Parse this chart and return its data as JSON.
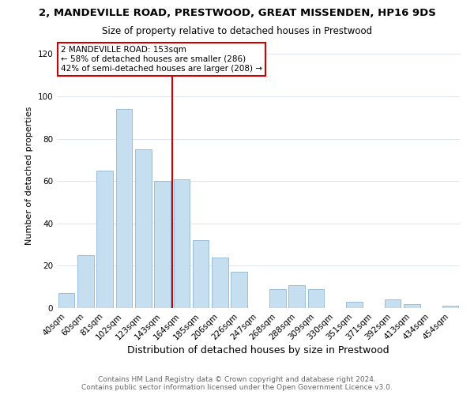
{
  "title": "2, MANDEVILLE ROAD, PRESTWOOD, GREAT MISSENDEN, HP16 9DS",
  "subtitle": "Size of property relative to detached houses in Prestwood",
  "xlabel": "Distribution of detached houses by size in Prestwood",
  "ylabel": "Number of detached properties",
  "bar_labels": [
    "40sqm",
    "60sqm",
    "81sqm",
    "102sqm",
    "123sqm",
    "143sqm",
    "164sqm",
    "185sqm",
    "206sqm",
    "226sqm",
    "247sqm",
    "268sqm",
    "288sqm",
    "309sqm",
    "330sqm",
    "351sqm",
    "371sqm",
    "392sqm",
    "413sqm",
    "434sqm",
    "454sqm"
  ],
  "bar_values": [
    7,
    25,
    65,
    94,
    75,
    60,
    61,
    32,
    24,
    17,
    0,
    9,
    11,
    9,
    0,
    3,
    0,
    4,
    2,
    0,
    1
  ],
  "bar_color": "#c5dff0",
  "bar_edge_color": "#9abdd6",
  "vline_x": 5.5,
  "vline_color": "#cc0000",
  "ylim": [
    0,
    125
  ],
  "yticks": [
    0,
    20,
    40,
    60,
    80,
    100,
    120
  ],
  "annotation_line1": "2 MANDEVILLE ROAD: 153sqm",
  "annotation_line2": "← 58% of detached houses are smaller (286)",
  "annotation_line3": "42% of semi-detached houses are larger (208) →",
  "annotation_box_color": "#cc0000",
  "footer_line1": "Contains HM Land Registry data © Crown copyright and database right 2024.",
  "footer_line2": "Contains public sector information licensed under the Open Government Licence v3.0.",
  "title_fontsize": 9.5,
  "subtitle_fontsize": 8.5,
  "xlabel_fontsize": 9,
  "ylabel_fontsize": 8,
  "tick_fontsize": 7.5,
  "annotation_fontsize": 7.5,
  "footer_fontsize": 6.5
}
